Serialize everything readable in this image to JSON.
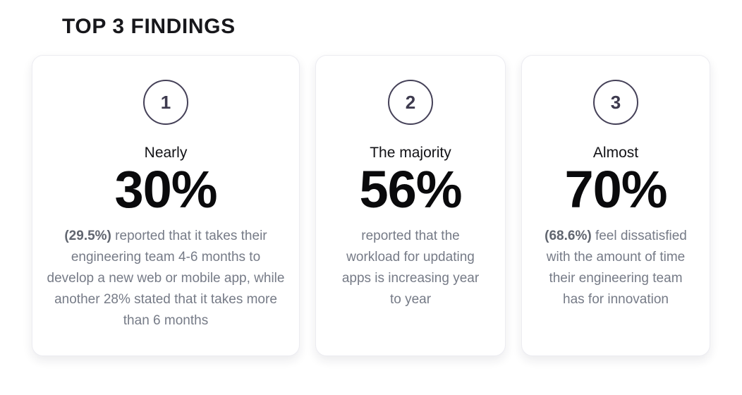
{
  "title": "TOP 3 FINDINGS",
  "colors": {
    "title": "#17171b",
    "circle_border": "#454158",
    "circle_number": "#3d3a4e",
    "stat": "#0a0a0c",
    "body_text": "#767b87",
    "body_text_bold": "#60656f",
    "card_background": "#ffffff",
    "card_border": "#ececf1"
  },
  "cards": [
    {
      "number": "1",
      "lead": "Nearly",
      "stat": "30%",
      "description_bold": "(29.5%)",
      "description_rest": " reported that it takes their engineering team 4-6 months to develop a new web or mobile app, while another 28% stated that it takes more than 6 months"
    },
    {
      "number": "2",
      "lead": "The majority",
      "stat": "56%",
      "description_bold": "",
      "description_rest": "reported that the workload for updating apps is increasing year to year"
    },
    {
      "number": "3",
      "lead": "Almost",
      "stat": "70%",
      "description_bold": "(68.6%)",
      "description_rest": " feel dissatisfied with the amount of time their engineering team has for innovation"
    }
  ]
}
